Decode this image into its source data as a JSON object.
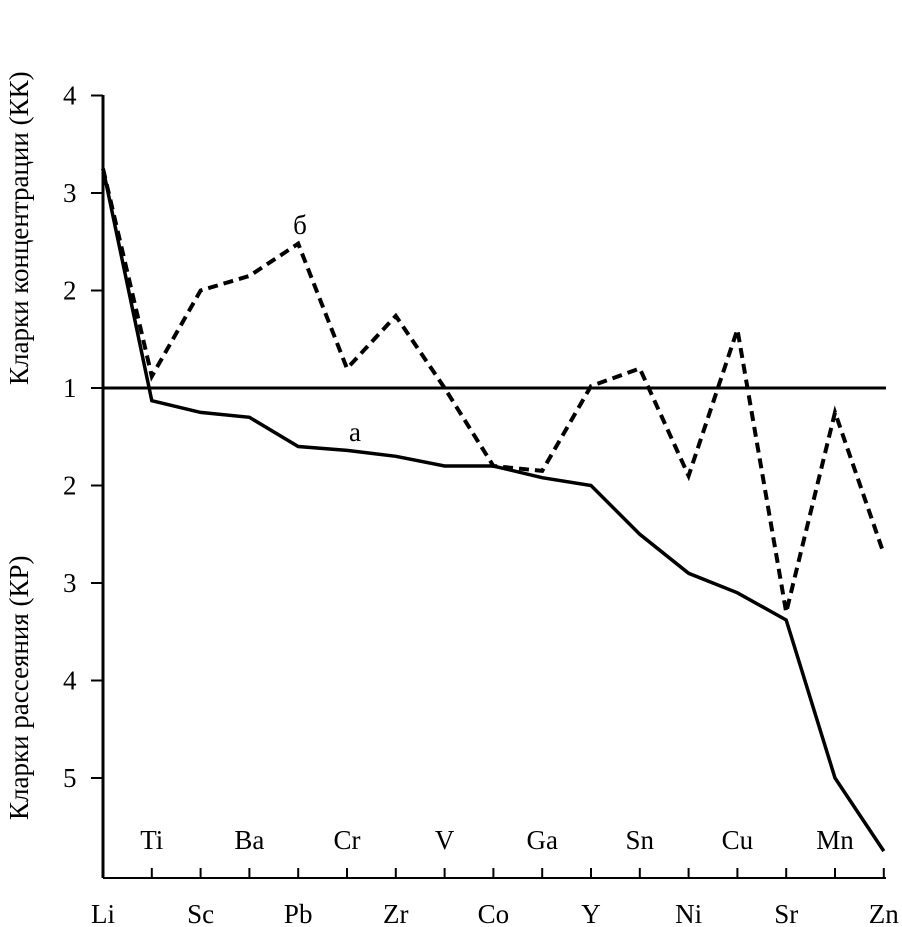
{
  "chart_data": {
    "type": "line",
    "y_label_upper": "Кларки концентрации (КК)",
    "y_label_lower": "Кларки рассеяния (КР)",
    "y_ticks_upper": [
      "4",
      "3",
      "2"
    ],
    "y_ticks_center": "1",
    "y_ticks_lower": [
      "2",
      "3",
      "4",
      "5"
    ],
    "scale_note": "y in signed units: +3 = КК 4, +1 = КК 2, 0 = value 1, -1 = КР 2, -4 = КР 5",
    "categories": [
      "Li",
      "Ti",
      "Sc",
      "Ba",
      "Pb",
      "Cr",
      "Zr",
      "V",
      "Co",
      "Ga",
      "Y",
      "Sn",
      "Ni",
      "Cu",
      "Sr",
      "Mn",
      "Zn"
    ],
    "categories_bottom": [
      "Li",
      "Sc",
      "Pb",
      "Zr",
      "Co",
      "Y",
      "Ni",
      "Sr",
      "Zn"
    ],
    "categories_top": [
      "Ti",
      "Ba",
      "Cr",
      "V",
      "Ga",
      "Sn",
      "Cu",
      "Mn"
    ],
    "ylim": [
      -4.9,
      3.0
    ],
    "series": [
      {
        "name": "а",
        "style": "solid",
        "values": [
          2.25,
          -0.13,
          -0.25,
          -0.3,
          -0.6,
          -0.64,
          -0.7,
          -0.8,
          -0.8,
          -0.92,
          -1.0,
          -1.5,
          -1.9,
          -2.1,
          -2.38,
          -4.0,
          -4.75
        ]
      },
      {
        "name": "б",
        "style": "dashed",
        "values": [
          2.25,
          0.12,
          1.0,
          1.15,
          1.48,
          0.2,
          0.74,
          0.0,
          -0.8,
          -0.85,
          0.02,
          0.2,
          -0.9,
          0.6,
          -2.3,
          -0.25,
          -1.7
        ]
      }
    ],
    "colors": {
      "line": "#000000",
      "background": "#ffffff"
    }
  }
}
